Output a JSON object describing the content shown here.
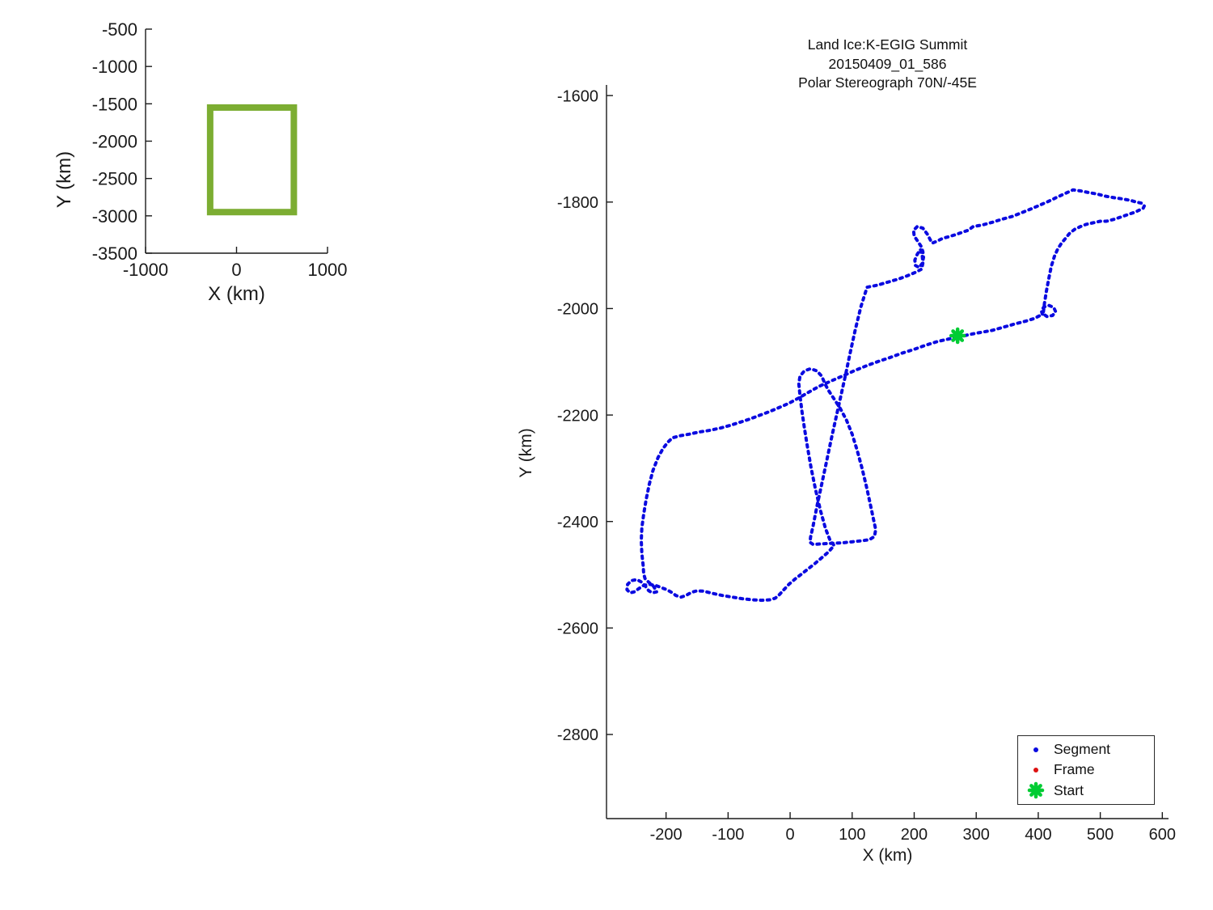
{
  "figure": {
    "background": "#ffffff"
  },
  "chart_data": [
    {
      "id": "inset_chart",
      "type": "line",
      "title": "",
      "xlabel": "X (km)",
      "ylabel": "Y (km)",
      "xlim": [
        -1000,
        1000
      ],
      "ylim": [
        -3500,
        -500
      ],
      "xticks": [
        -1000,
        0,
        1000
      ],
      "yticks": [
        -500,
        -1000,
        -1500,
        -2000,
        -2500,
        -3000,
        -3500
      ],
      "grid": false,
      "region_rect": {
        "x0": -290,
        "x1": 630,
        "y0": -2950,
        "y1": -1550,
        "color": "#7CAD32",
        "line_width": 8
      }
    },
    {
      "id": "main_chart",
      "type": "line",
      "title_lines": [
        "Land Ice:K-EGIG Summit",
        "20150409_01_586",
        "Polar Stereograph 70N/-45E"
      ],
      "xlabel": "X (km)",
      "ylabel": "Y (km)",
      "xlim": [
        -296,
        610
      ],
      "ylim": [
        -2958,
        -1580
      ],
      "xticks": [
        -200,
        -100,
        0,
        100,
        200,
        300,
        400,
        500,
        600
      ],
      "yticks": [
        -1600,
        -1800,
        -2000,
        -2200,
        -2400,
        -2600,
        -2800
      ],
      "grid": false,
      "track_color": "#0A0AE0",
      "frame_color": "#DD1111",
      "start_color": "#00CC33",
      "start_point": {
        "x": 270,
        "y": -2051
      },
      "track": [
        [
          271,
          -2054
        ],
        [
          288,
          -2049
        ],
        [
          306,
          -2045
        ],
        [
          326,
          -2041
        ],
        [
          344,
          -2035
        ],
        [
          362,
          -2029
        ],
        [
          379,
          -2024
        ],
        [
          393,
          -2019
        ],
        [
          403,
          -2013
        ],
        [
          407,
          -2012
        ],
        [
          405,
          -2004
        ],
        [
          409,
          -1997
        ],
        [
          417,
          -1994
        ],
        [
          425,
          -1998
        ],
        [
          428,
          -2006
        ],
        [
          423,
          -2013
        ],
        [
          414,
          -2015
        ],
        [
          408,
          -2010
        ],
        [
          410,
          -1990
        ],
        [
          413,
          -1968
        ],
        [
          417,
          -1944
        ],
        [
          421,
          -1921
        ],
        [
          426,
          -1902
        ],
        [
          431,
          -1889
        ],
        [
          437,
          -1878
        ],
        [
          444,
          -1868
        ],
        [
          451,
          -1858
        ],
        [
          459,
          -1851
        ],
        [
          468,
          -1846
        ],
        [
          477,
          -1842
        ],
        [
          488,
          -1839
        ],
        [
          500,
          -1836
        ],
        [
          510,
          -1836
        ],
        [
          523,
          -1832
        ],
        [
          536,
          -1827
        ],
        [
          548,
          -1822
        ],
        [
          556,
          -1819
        ],
        [
          563,
          -1815
        ],
        [
          569,
          -1812
        ],
        [
          571,
          -1807
        ],
        [
          566,
          -1802
        ],
        [
          558,
          -1800
        ],
        [
          549,
          -1797
        ],
        [
          536,
          -1794
        ],
        [
          523,
          -1792
        ],
        [
          509,
          -1789
        ],
        [
          495,
          -1785
        ],
        [
          481,
          -1782
        ],
        [
          468,
          -1779
        ],
        [
          456,
          -1777
        ],
        [
          443,
          -1784
        ],
        [
          430,
          -1791
        ],
        [
          416,
          -1799
        ],
        [
          402,
          -1806
        ],
        [
          388,
          -1813
        ],
        [
          373,
          -1820
        ],
        [
          358,
          -1827
        ],
        [
          342,
          -1832
        ],
        [
          326,
          -1838
        ],
        [
          310,
          -1843
        ],
        [
          295,
          -1846
        ],
        [
          287,
          -1853
        ],
        [
          277,
          -1857
        ],
        [
          267,
          -1861
        ],
        [
          256,
          -1865
        ],
        [
          246,
          -1868
        ],
        [
          236,
          -1874
        ],
        [
          229,
          -1877
        ],
        [
          226,
          -1871
        ],
        [
          221,
          -1860
        ],
        [
          214,
          -1849
        ],
        [
          205,
          -1846
        ],
        [
          199,
          -1853
        ],
        [
          200,
          -1864
        ],
        [
          206,
          -1874
        ],
        [
          211,
          -1883
        ],
        [
          214,
          -1893
        ],
        [
          215,
          -1904
        ],
        [
          213,
          -1915
        ],
        [
          208,
          -1923
        ],
        [
          202,
          -1919
        ],
        [
          201,
          -1909
        ],
        [
          205,
          -1898
        ],
        [
          210,
          -1889
        ],
        [
          213,
          -1902
        ],
        [
          214,
          -1915
        ],
        [
          212,
          -1926
        ],
        [
          202,
          -1932
        ],
        [
          190,
          -1938
        ],
        [
          176,
          -1944
        ],
        [
          159,
          -1950
        ],
        [
          141,
          -1956
        ],
        [
          124,
          -1960
        ],
        [
          114,
          -1997
        ],
        [
          105,
          -2040
        ],
        [
          97,
          -2082
        ],
        [
          90,
          -2121
        ],
        [
          82,
          -2163
        ],
        [
          74,
          -2205
        ],
        [
          66,
          -2247
        ],
        [
          58,
          -2291
        ],
        [
          50,
          -2335
        ],
        [
          43,
          -2373
        ],
        [
          37,
          -2409
        ],
        [
          33,
          -2429
        ],
        [
          32,
          -2439
        ],
        [
          37,
          -2443
        ],
        [
          50,
          -2442
        ],
        [
          66,
          -2441
        ],
        [
          84,
          -2440
        ],
        [
          101,
          -2438
        ],
        [
          117,
          -2436
        ],
        [
          128,
          -2434
        ],
        [
          136,
          -2428
        ],
        [
          138,
          -2415
        ],
        [
          134,
          -2394
        ],
        [
          129,
          -2366
        ],
        [
          123,
          -2334
        ],
        [
          116,
          -2300
        ],
        [
          108,
          -2266
        ],
        [
          100,
          -2236
        ],
        [
          91,
          -2210
        ],
        [
          81,
          -2188
        ],
        [
          71,
          -2170
        ],
        [
          62,
          -2154
        ],
        [
          56,
          -2141
        ],
        [
          51,
          -2127
        ],
        [
          43,
          -2117
        ],
        [
          33,
          -2113
        ],
        [
          23,
          -2117
        ],
        [
          16,
          -2127
        ],
        [
          14,
          -2141
        ],
        [
          16,
          -2164
        ],
        [
          19,
          -2192
        ],
        [
          23,
          -2224
        ],
        [
          28,
          -2260
        ],
        [
          34,
          -2300
        ],
        [
          41,
          -2340
        ],
        [
          49,
          -2380
        ],
        [
          57,
          -2413
        ],
        [
          65,
          -2437
        ],
        [
          71,
          -2445
        ],
        [
          62,
          -2457
        ],
        [
          51,
          -2468
        ],
        [
          40,
          -2479
        ],
        [
          29,
          -2489
        ],
        [
          18,
          -2499
        ],
        [
          8,
          -2508
        ],
        [
          -2,
          -2518
        ],
        [
          -10,
          -2528
        ],
        [
          -17,
          -2537
        ],
        [
          -24,
          -2544
        ],
        [
          -32,
          -2547
        ],
        [
          -46,
          -2548
        ],
        [
          -61,
          -2547
        ],
        [
          -77,
          -2545
        ],
        [
          -93,
          -2542
        ],
        [
          -109,
          -2539
        ],
        [
          -125,
          -2535
        ],
        [
          -139,
          -2531
        ],
        [
          -150,
          -2530
        ],
        [
          -159,
          -2533
        ],
        [
          -168,
          -2539
        ],
        [
          -176,
          -2542
        ],
        [
          -184,
          -2539
        ],
        [
          -191,
          -2533
        ],
        [
          -199,
          -2528
        ],
        [
          -208,
          -2524
        ],
        [
          -217,
          -2520
        ],
        [
          -227,
          -2518
        ],
        [
          -236,
          -2520
        ],
        [
          -244,
          -2526
        ],
        [
          -251,
          -2532
        ],
        [
          -258,
          -2534
        ],
        [
          -263,
          -2528
        ],
        [
          -262,
          -2518
        ],
        [
          -256,
          -2511
        ],
        [
          -247,
          -2509
        ],
        [
          -239,
          -2514
        ],
        [
          -233,
          -2522
        ],
        [
          -228,
          -2530
        ],
        [
          -222,
          -2534
        ],
        [
          -215,
          -2532
        ],
        [
          -220,
          -2522
        ],
        [
          -228,
          -2514
        ],
        [
          -234,
          -2507
        ],
        [
          -236,
          -2498
        ],
        [
          -237,
          -2482
        ],
        [
          -239,
          -2460
        ],
        [
          -240,
          -2436
        ],
        [
          -239,
          -2412
        ],
        [
          -236,
          -2386
        ],
        [
          -232,
          -2358
        ],
        [
          -227,
          -2330
        ],
        [
          -221,
          -2304
        ],
        [
          -213,
          -2280
        ],
        [
          -205,
          -2263
        ],
        [
          -197,
          -2251
        ],
        [
          -190,
          -2243
        ],
        [
          -178,
          -2239
        ],
        [
          -163,
          -2236
        ],
        [
          -147,
          -2232
        ],
        [
          -131,
          -2229
        ],
        [
          -114,
          -2225
        ],
        [
          -98,
          -2220
        ],
        [
          -82,
          -2214
        ],
        [
          -66,
          -2208
        ],
        [
          -50,
          -2201
        ],
        [
          -34,
          -2194
        ],
        [
          -18,
          -2186
        ],
        [
          -2,
          -2178
        ],
        [
          14,
          -2168
        ],
        [
          30,
          -2157
        ],
        [
          47,
          -2146
        ],
        [
          66,
          -2136
        ],
        [
          86,
          -2126
        ],
        [
          105,
          -2116
        ],
        [
          124,
          -2107
        ],
        [
          143,
          -2099
        ],
        [
          161,
          -2092
        ],
        [
          180,
          -2084
        ],
        [
          199,
          -2077
        ],
        [
          218,
          -2069
        ],
        [
          237,
          -2062
        ],
        [
          256,
          -2057
        ],
        [
          271,
          -2054
        ]
      ],
      "legend": {
        "items": [
          {
            "label": "Segment",
            "marker": "dot",
            "color": "#0A0AE0"
          },
          {
            "label": "Frame",
            "marker": "dot",
            "color": "#DD1111"
          },
          {
            "label": "Start",
            "marker": "star",
            "color": "#00CC33"
          }
        ]
      }
    }
  ]
}
